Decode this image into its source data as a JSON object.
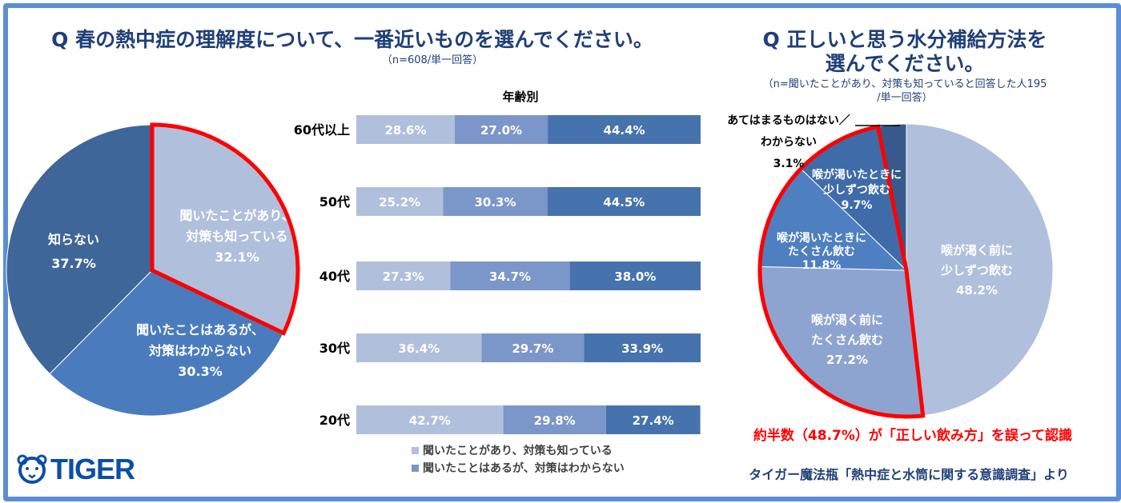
{
  "logo": "TIGER",
  "source": "タイガー魔法瓶「熱中症と水筒に関する意識調査」より",
  "note": "約半数（48.7%）が「正しい飲み方」を誤って認識",
  "colors": {
    "border": "#5b8ed6",
    "highlight": "#ff0000",
    "title": "#1f3f78"
  },
  "chart_data": [
    {
      "type": "pie",
      "title": "Q 春の熱中症の理解度について、一番近いものを選んでください。",
      "subtitle": "（n=608/単一回答）",
      "slices": [
        {
          "label": "聞いたことがあり、対策も知っている",
          "value": 32.1,
          "text": "32.1%",
          "color": "#b0bfdc",
          "highlight": true
        },
        {
          "label": "聞いたことはあるが、対策はわからない",
          "value": 30.3,
          "text": "30.3%",
          "color": "#4a7bbd"
        },
        {
          "label": "知らない",
          "value": 37.7,
          "text": "37.7%",
          "color": "#3f6698"
        }
      ]
    },
    {
      "type": "bar",
      "stacked": true,
      "orientation": "horizontal",
      "title": "年齢別",
      "categories": [
        "60代以上",
        "50代",
        "40代",
        "30代",
        "20代"
      ],
      "series": [
        {
          "name": "聞いたことがあり、対策も知っている",
          "color": "#b0bfdc",
          "values": [
            28.6,
            25.2,
            27.3,
            36.4,
            42.7
          ]
        },
        {
          "name": "聞いたことはあるが、対策はわからない",
          "color": "#7b96c9",
          "values": [
            27.0,
            30.3,
            34.7,
            29.7,
            29.8
          ]
        },
        {
          "name": "知らない",
          "color": "#4673ad",
          "values": [
            44.4,
            44.5,
            38.0,
            33.9,
            27.4
          ]
        }
      ],
      "legend": [
        "聞いたことがあり、対策も知っている",
        "聞いたことはあるが、対策はわからない"
      ]
    },
    {
      "type": "pie",
      "title": "Q 正しいと思う水分補給方法を",
      "title2": "選んでください。",
      "subtitle": "（n=聞いたことがあり、対策も知っていると回答した人195",
      "subtitle2": "/単一回答）",
      "slices": [
        {
          "label": "喉が渇く前に少しずつ飲む",
          "value": 48.2,
          "text": "48.2%",
          "color": "#b0bfdc"
        },
        {
          "label": "喉が渇く前にたくさん飲む",
          "value": 27.2,
          "text": "27.2%",
          "color": "#8ea4d0",
          "highlight": true
        },
        {
          "label": "喉が渇いたときにたくさん飲む",
          "value": 11.8,
          "text": "11.8%",
          "color": "#4e7fc0",
          "highlight": true
        },
        {
          "label": "喉が渇いたときに少しずつ飲む",
          "value": 9.7,
          "text": "9.7%",
          "color": "#3f6ca8",
          "highlight": true
        },
        {
          "label": "あてはまるものはない／わからない",
          "value": 3.1,
          "text": "3.1%",
          "color": "#37598b"
        }
      ]
    }
  ]
}
